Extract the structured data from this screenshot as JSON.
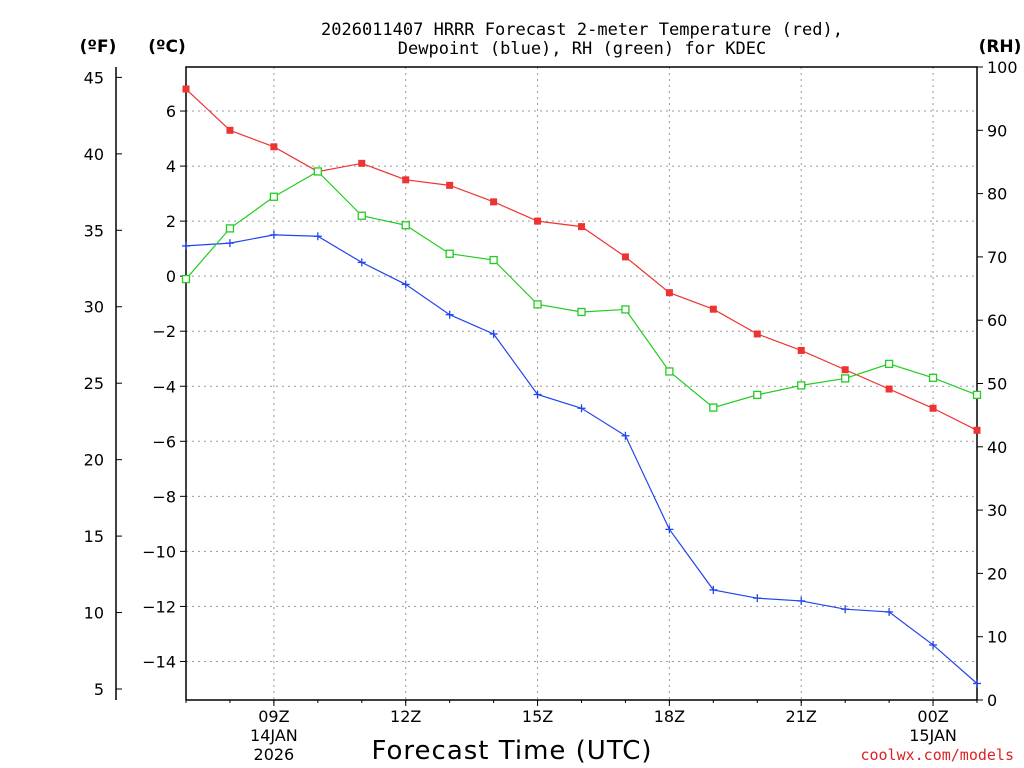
{
  "chart_data": {
    "type": "line",
    "title": [
      "2026011407 HRRR Forecast 2-meter Temperature (red),",
      "Dewpoint (blue), RH (green) for KDEC"
    ],
    "xlabel": "Forecast Time (UTC)",
    "unit_labels": {
      "fahrenheit": "(ºF)",
      "celsius": "(ºC)",
      "rh": "(RH)"
    },
    "x": [
      7,
      8,
      9,
      10,
      11,
      12,
      13,
      14,
      15,
      16,
      17,
      18,
      19,
      20,
      21,
      22,
      23,
      24,
      25
    ],
    "xlim": [
      7,
      25
    ],
    "x_ticks": [
      {
        "x": 9,
        "label": "09Z",
        "sub": [
          "14JAN",
          "2026"
        ]
      },
      {
        "x": 12,
        "label": "12Z",
        "sub": []
      },
      {
        "x": 15,
        "label": "15Z",
        "sub": []
      },
      {
        "x": 18,
        "label": "18Z",
        "sub": []
      },
      {
        "x": 21,
        "label": "21Z",
        "sub": []
      },
      {
        "x": 24,
        "label": "00Z",
        "sub": [
          "15JAN"
        ]
      }
    ],
    "ylim_celsius": [
      -15.4,
      7.6
    ],
    "celsius_ticks": [
      6,
      4,
      2,
      0,
      -2,
      -4,
      -6,
      -8,
      -10,
      -12,
      -14
    ],
    "celsius_tick_labels": [
      "6",
      "4",
      "2",
      "0",
      "−2",
      "−4",
      "−6",
      "−8",
      "−10",
      "−12",
      "−14"
    ],
    "fahrenheit_ticks": [
      45,
      40,
      35,
      30,
      25,
      20,
      15,
      10,
      5
    ],
    "fahrenheit_tick_labels": [
      "45",
      "40",
      "35",
      "30",
      "25",
      "20",
      "15",
      "10",
      "5"
    ],
    "ylim_rh": [
      0,
      100
    ],
    "rh_ticks": [
      100,
      90,
      80,
      70,
      60,
      50,
      40,
      30,
      20,
      10,
      0
    ],
    "rh_tick_labels": [
      "100",
      "90",
      "80",
      "70",
      "60",
      "50",
      "40",
      "30",
      "20",
      "10",
      "0"
    ],
    "grid": true,
    "series": [
      {
        "name": "Temperature",
        "axis": "celsius",
        "color": "#ee3333",
        "marker": "filled-square",
        "values": [
          6.8,
          5.3,
          4.7,
          3.8,
          4.1,
          3.5,
          3.3,
          2.7,
          2.0,
          1.8,
          0.7,
          -0.6,
          -1.2,
          -2.1,
          -2.7,
          -3.4,
          -4.1,
          -4.8,
          -5.6
        ]
      },
      {
        "name": "Dewpoint",
        "axis": "celsius",
        "color": "#2244ee",
        "marker": "plus",
        "values": [
          1.1,
          1.2,
          1.5,
          1.45,
          0.5,
          -0.3,
          -1.4,
          -2.1,
          -4.3,
          -4.8,
          -5.8,
          -9.2,
          -11.4,
          -11.7,
          -11.8,
          -12.1,
          -12.2,
          -13.4,
          -14.8
        ]
      },
      {
        "name": "RH",
        "axis": "rh",
        "color": "#22cc22",
        "marker": "open-square",
        "values": [
          66.5,
          74.5,
          79.5,
          83.5,
          76.5,
          75.0,
          70.5,
          69.5,
          62.5,
          61.3,
          61.7,
          51.9,
          46.2,
          48.2,
          49.7,
          50.8,
          53.1,
          50.9,
          48.2
        ]
      }
    ]
  },
  "credit": "coolwx.com/models",
  "colors": {
    "grid": "#999999",
    "axis": "#000000",
    "credit": "#dd2222"
  }
}
